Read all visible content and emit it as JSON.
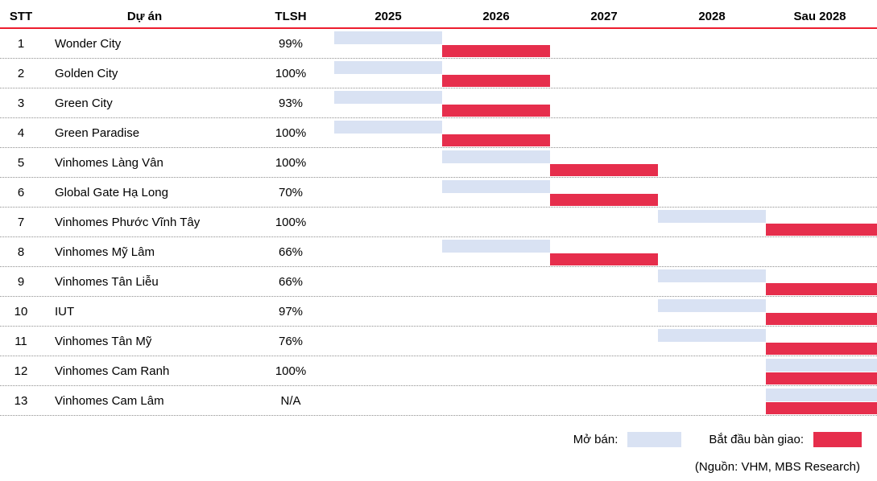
{
  "header": {
    "stt": "STT",
    "project": "Dự án",
    "tlsh": "TLSH"
  },
  "colors": {
    "open_sale": "#d9e2f3",
    "handover": "#e62e4c",
    "header_line": "#ed1c2e"
  },
  "legend": [
    {
      "label": "Mở bán:",
      "key": "open_sale"
    },
    {
      "label": "Bắt đầu bàn giao:",
      "key": "handover"
    }
  ],
  "source_note": "(Nguồn: VHM, MBS Research)",
  "chart_data": {
    "type": "table",
    "subtype": "gantt-timeline",
    "columns": [
      "STT",
      "Dự án",
      "TLSH",
      "2025",
      "2026",
      "2027",
      "2028",
      "Sau 2028"
    ],
    "timeline_years": [
      "2025",
      "2026",
      "2027",
      "2028",
      "Sau 2028"
    ],
    "legend": [
      {
        "label": "Mở bán:",
        "meaning": "open-sale period",
        "color": "#d9e2f3"
      },
      {
        "label": "Bắt đầu bàn giao:",
        "meaning": "handover start",
        "color": "#e62e4c"
      }
    ],
    "rows": [
      {
        "stt": "1",
        "project": "Wonder City",
        "tlsh": "99%",
        "open_sale": "2025",
        "handover": "2026"
      },
      {
        "stt": "2",
        "project": "Golden City",
        "tlsh": "100%",
        "open_sale": "2025",
        "handover": "2026"
      },
      {
        "stt": "3",
        "project": "Green City",
        "tlsh": "93%",
        "open_sale": "2025",
        "handover": "2026"
      },
      {
        "stt": "4",
        "project": "Green Paradise",
        "tlsh": "100%",
        "open_sale": "2025",
        "handover": "2026"
      },
      {
        "stt": "5",
        "project": "Vinhomes Làng Vân",
        "tlsh": "100%",
        "open_sale": "2026",
        "handover": "2027"
      },
      {
        "stt": "6",
        "project": "Global Gate Hạ Long",
        "tlsh": "70%",
        "open_sale": "2026",
        "handover": "2027"
      },
      {
        "stt": "7",
        "project": "Vinhomes Phước Vĩnh Tây",
        "tlsh": "100%",
        "open_sale": "2028",
        "handover": "Sau 2028"
      },
      {
        "stt": "8",
        "project": "Vinhomes Mỹ Lâm",
        "tlsh": "66%",
        "open_sale": "2026",
        "handover": "2027"
      },
      {
        "stt": "9",
        "project": "Vinhomes Tân Liễu",
        "tlsh": "66%",
        "open_sale": "2028",
        "handover": "Sau 2028"
      },
      {
        "stt": "10",
        "project": "IUT",
        "tlsh": "97%",
        "open_sale": "2028",
        "handover": "Sau 2028"
      },
      {
        "stt": "11",
        "project": "Vinhomes Tân Mỹ",
        "tlsh": "76%",
        "open_sale": "2028",
        "handover": "Sau 2028"
      },
      {
        "stt": "12",
        "project": "Vinhomes Cam Ranh",
        "tlsh": "100%",
        "open_sale": "Sau 2028",
        "handover": "Sau 2028"
      },
      {
        "stt": "13",
        "project": "Vinhomes Cam Lâm",
        "tlsh": "N/A",
        "open_sale": "Sau 2028",
        "handover": "Sau 2028"
      }
    ],
    "source": "(Nguồn: VHM, MBS Research)"
  }
}
